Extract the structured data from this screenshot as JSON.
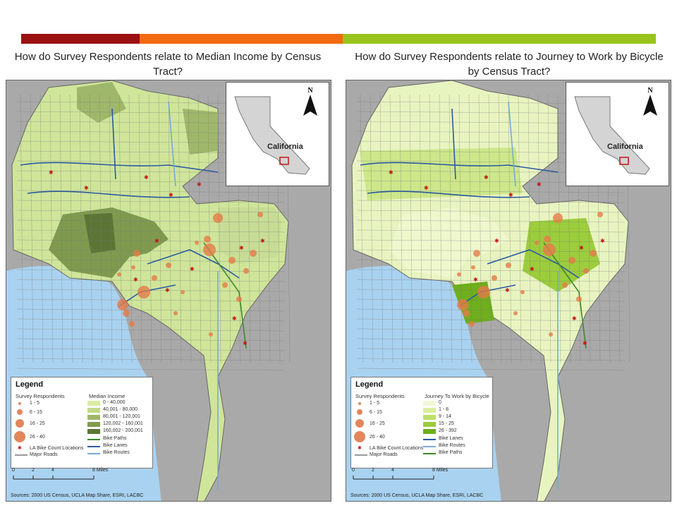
{
  "header_bar_colors": [
    "#9b1010",
    "#f26a12",
    "#99c41c"
  ],
  "panels": [
    {
      "title": "How do Survey Respondents relate to Median Income by Census Tract?",
      "inset_label": "California",
      "north": "N",
      "legend": {
        "title": "Legend",
        "respondents_head": "Survey Respondents",
        "respondent_classes": [
          "1 - 5",
          "6 - 15",
          "16 - 25",
          "26 - 40"
        ],
        "bike_count": "LA Bike Count Locations",
        "major_roads": "Major Roads",
        "value_head": "Median Income",
        "value_classes": [
          "0 - 40,000",
          "40,001 - 80,000",
          "80,001 - 120,001",
          "120,002 - 160,001",
          "160,002 - 200,001"
        ],
        "value_colors": [
          "#d9eca4",
          "#c2d98a",
          "#9fb76a",
          "#7f9a4f",
          "#5c7535"
        ],
        "line_items": [
          {
            "label": "Bike Paths",
            "color": "#3c8a2a"
          },
          {
            "label": "Bike Lanes",
            "color": "#2c5aa0"
          },
          {
            "label": "Bike Routes",
            "color": "#7aa8d8"
          }
        ]
      },
      "scale": {
        "ticks": [
          "0",
          "2",
          "4",
          "8 Miles"
        ]
      },
      "sources": "Sources: 2000 US Census, UCLA Map Share, ESRI, LACBC"
    },
    {
      "title": "How do Survey Respondents relate to Journey to Work by Bicycle by Census Tract?",
      "inset_label": "California",
      "north": "N",
      "legend": {
        "title": "Legend",
        "respondents_head": "Survey Respondents",
        "respondent_classes": [
          "1 - 5",
          "6 - 15",
          "16 - 25",
          "26 - 40"
        ],
        "bike_count": "LA Bike Count Locations",
        "major_roads": "Major Roads",
        "value_head": "Journey To Work by Bicycle",
        "value_classes": [
          "0",
          "1 - 8",
          "9 - 14",
          "15 - 25",
          "26 - 392"
        ],
        "value_colors": [
          "#f2f8d4",
          "#dbef9e",
          "#bde06a",
          "#9ccd3c",
          "#6fae1c"
        ],
        "line_items": [
          {
            "label": "Bike Lanes",
            "color": "#2c5aa0"
          },
          {
            "label": "Bike Routes",
            "color": "#7aa8d8"
          },
          {
            "label": "Bike Paths",
            "color": "#3c8a2a"
          }
        ]
      },
      "scale": {
        "ticks": [
          "0",
          "2",
          "4",
          "8 Miles"
        ]
      },
      "sources": "Sources: 2000 US Census, UCLA Map Share, ESRI, LACBC"
    }
  ]
}
